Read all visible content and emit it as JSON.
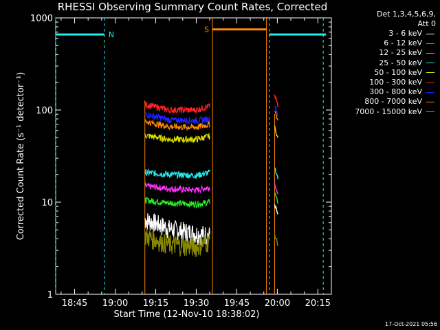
{
  "title": "RHESSI Observing Summary Count Rates, Corrected",
  "legend_header": [
    "Det 1,3,4,5,6,9,",
    "Att 0"
  ],
  "footer_timestamp": "17-Oct-2021 05:56",
  "colors": {
    "background": "#000000",
    "axes": "#ffffff"
  },
  "chart_data": {
    "type": "line",
    "xlabel": "Start Time (12-Nov-10 18:38:02)",
    "ylabel": "Corrected Count Rate (s⁻¹ detector⁻¹)",
    "xlim": [
      "18:38",
      "20:20"
    ],
    "ylim": [
      1,
      1000
    ],
    "yscale": "log",
    "xticks": [
      "18:45",
      "19:00",
      "19:15",
      "19:30",
      "19:45",
      "20:00",
      "20:15"
    ],
    "yticks": [
      "1",
      "10",
      "100",
      "1000"
    ],
    "series": [
      {
        "name": "3 - 6 keV",
        "color": "#ffffff",
        "x": [
          "19:11",
          "19:20",
          "19:30",
          "19:35",
          "19:59"
        ],
        "values": [
          6.5,
          5.2,
          4.6,
          4.4,
          9.5
        ]
      },
      {
        "name": "6 - 12 keV",
        "color": "#ff33ff",
        "x": [
          "19:11",
          "19:20",
          "19:30",
          "19:35",
          "19:59"
        ],
        "values": [
          15,
          14,
          13.5,
          14.5,
          16
        ]
      },
      {
        "name": "12 - 25 keV",
        "color": "#22ee22",
        "x": [
          "19:11",
          "19:20",
          "19:30",
          "19:35",
          "19:59"
        ],
        "values": [
          10.5,
          9.8,
          9.5,
          10,
          13
        ]
      },
      {
        "name": "25 - 50 keV",
        "color": "#22eeee",
        "x": [
          "19:11",
          "19:20",
          "19:30",
          "19:35",
          "19:59"
        ],
        "values": [
          21,
          20,
          19.5,
          21,
          24
        ]
      },
      {
        "name": "50 - 100 keV",
        "color": "#dddd00",
        "x": [
          "19:11",
          "19:20",
          "19:30",
          "19:35",
          "19:59"
        ],
        "values": [
          53,
          48,
          48,
          52,
          65
        ]
      },
      {
        "name": "100 - 300 keV",
        "color": "#ff2222",
        "x": [
          "19:11",
          "19:20",
          "19:30",
          "19:35",
          "19:59"
        ],
        "values": [
          115,
          100,
          100,
          110,
          145
        ]
      },
      {
        "name": "300 - 800 keV",
        "color": "#2222ff",
        "x": [
          "19:11",
          "19:20",
          "19:30",
          "19:35",
          "19:59"
        ],
        "values": [
          90,
          78,
          77,
          80,
          115
        ]
      },
      {
        "name": "800 - 7000 keV",
        "color": "#ff8800",
        "x": [
          "19:11",
          "19:20",
          "19:30",
          "19:35",
          "19:59"
        ],
        "values": [
          75,
          66,
          65,
          70,
          100
        ]
      },
      {
        "name": "7000 - 15000 keV",
        "color": "#8a8a00",
        "x": [
          "19:11",
          "19:20",
          "19:30",
          "19:35",
          "19:59"
        ],
        "values": [
          4.3,
          3.5,
          3.3,
          3.8,
          4.5
        ]
      }
    ],
    "flags": [
      {
        "label": "N",
        "color": "#22eeee",
        "value": 660,
        "segments": [
          [
            "18:38",
            "18:56"
          ],
          [
            "19:57",
            "20:18"
          ]
        ]
      },
      {
        "label": "S",
        "color": "#ff8800",
        "value": 750,
        "segments": [
          [
            "19:36",
            "19:56"
          ]
        ]
      }
    ]
  }
}
